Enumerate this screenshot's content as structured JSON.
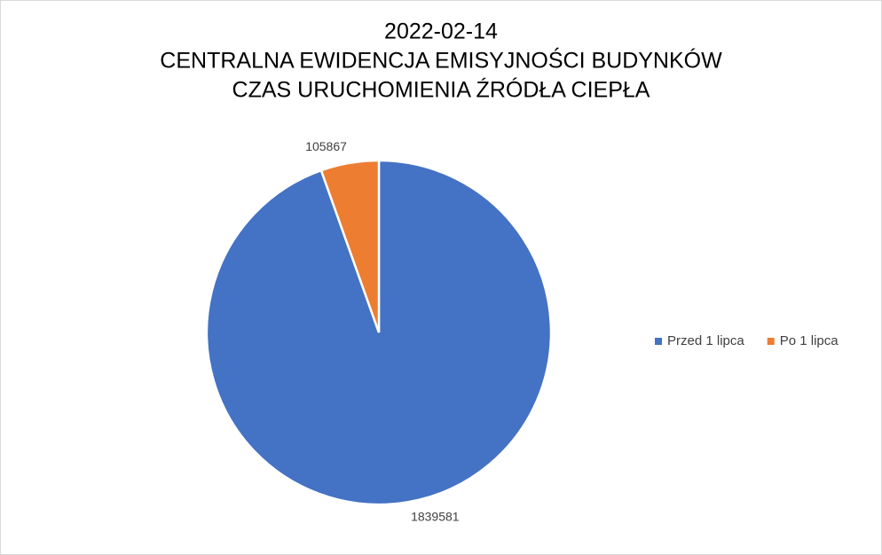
{
  "chart_data": {
    "type": "pie",
    "title": [
      "2022-02-14",
      "CENTRALNA EWIDENCJA EMISYJNOŚCI BUDYNKÓW",
      "CZAS URUCHOMIENIA ŹRÓDŁA CIEPŁA"
    ],
    "categories": [
      "Przed 1 lipca",
      "Po 1 lipca"
    ],
    "values": [
      1839581,
      105867
    ],
    "colors": [
      "#4472c4",
      "#ed7d31"
    ],
    "legend": "right"
  }
}
